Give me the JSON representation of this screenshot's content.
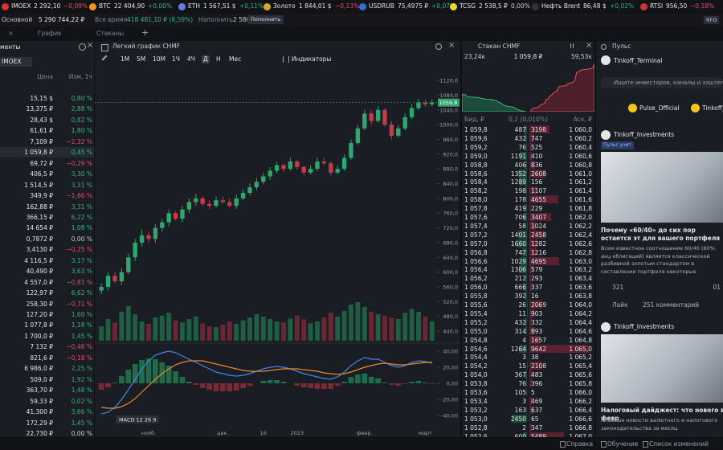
{
  "ticker": [
    {
      "name": "IMOEX",
      "value": "2 292,10",
      "change": "−0,09%"
    },
    {
      "name": "BTC",
      "value": "22 404,90",
      "change": "+0,00%"
    },
    {
      "name": "ETH",
      "value": "1 567,51 $",
      "change": "+0,11%"
    },
    {
      "name": "Золото",
      "value": "1 844,01 $",
      "change": "−0,13%"
    },
    {
      "name": "USDRUB",
      "value": "75,4975 ₽",
      "change": "+0,07%"
    },
    {
      "name": "TCSG",
      "value": "2 538,5 ₽",
      "change": "0,00%"
    },
    {
      "name": "Нефть Brent",
      "value": "86,48 $",
      "change": "+0,02%"
    },
    {
      "name": "RTSI",
      "value": "956,50",
      "change": "−0,18%"
    }
  ],
  "account": {
    "portfolio": "Основной",
    "total": "5 290 744,22 ₽",
    "alltime_label": "Все время",
    "alltime": "418 481,10 ₽ (8,59%)",
    "cash_label": "Наполнить",
    "cash": "2 580,53 ₽",
    "deposit": "Пополнить",
    "badge": "RFO"
  },
  "tabs": [
    "График",
    "Стаканы"
  ],
  "instruments": {
    "title": "менты",
    "index": "IMOEX",
    "columns": [
      "Цена",
      "Изм, 1ч"
    ],
    "rows": [
      [
        "15,15 $",
        "0,80 %"
      ],
      [
        "13,375 ₽",
        "2,88 %"
      ],
      [
        "28,43 $",
        "0,82 %"
      ],
      [
        "61,61 ₽",
        "1,80 %"
      ],
      [
        "7,109 ₽",
        "−2,32 %"
      ],
      [
        "1 059,8 ₽",
        "0,45 %"
      ],
      [
        "69,72 ₽",
        "−0,29 %"
      ],
      [
        "406,5 ₽",
        "3,30 %"
      ],
      [
        "1 514,5 ₽",
        "3,31 %"
      ],
      [
        "349,9 ₽",
        "−1,66 %"
      ],
      [
        "162,88 ₽",
        "3,31 %"
      ],
      [
        "366,15 ₽",
        "6,22 %"
      ],
      [
        "14 654 ₽",
        "1,08 %"
      ],
      [
        "0,7872 ₽",
        "0,00 %"
      ],
      [
        "3,4130 ₽",
        "−0,25 %"
      ],
      [
        "4 116,5 ₽",
        "3,17 %"
      ],
      [
        "40,490 ₽",
        "3,63 %"
      ],
      [
        "4 557,0 ₽",
        "−0,81 %"
      ],
      [
        "122,97 ₽",
        "6,62 %"
      ],
      [
        "258,30 ₽",
        "−0,71 %"
      ],
      [
        "127,20 ₽",
        "1,60 %"
      ],
      [
        "1 077,8 ₽",
        "1,18 %"
      ],
      [
        "1 700,0 ₽",
        "1,45 %"
      ],
      [
        "7 132 ₽",
        "−0,46 %"
      ],
      [
        "821,6 ₽",
        "−0,18 %"
      ],
      [
        "6 986,0 ₽",
        "2,25 %"
      ],
      [
        "509,0 ₽",
        "1,92 %"
      ],
      [
        "363,70 ₽",
        "1,48 %"
      ],
      [
        "59,33 ₽",
        "0,02 %"
      ],
      [
        "41,300 ₽",
        "3,66 %"
      ],
      [
        "172,29 ₽",
        "1,45 %"
      ],
      [
        "22,730 ₽",
        "0,00 %"
      ]
    ]
  },
  "chart_header": {
    "title": "Легкий график CHMF",
    "periods": [
      "1М",
      "5М",
      "10М",
      "1Ч",
      "4Ч",
      "Д",
      "Н",
      "Мес"
    ],
    "indicators": "Индикаторы"
  },
  "chart_data": [
    {
      "type": "candlestick",
      "up_color": "#2fa66f",
      "down_color": "#c63a4c",
      "open": [
        550,
        560,
        590,
        575,
        600,
        640,
        680,
        700,
        690,
        720,
        735,
        760,
        745,
        770,
        790,
        800,
        785,
        780,
        795,
        790,
        780,
        800,
        815,
        830,
        845,
        860,
        875,
        890,
        880,
        900,
        885,
        870,
        880,
        900,
        895,
        870,
        880,
        910,
        950,
        990,
        1030,
        1010,
        1040,
        1000,
        970,
        990,
        1020,
        1045,
        1060,
        1055
      ],
      "high": [
        570,
        600,
        600,
        610,
        650,
        690,
        715,
        710,
        730,
        745,
        770,
        765,
        780,
        800,
        812,
        805,
        795,
        805,
        805,
        800,
        810,
        825,
        840,
        855,
        870,
        885,
        900,
        895,
        910,
        905,
        890,
        890,
        910,
        910,
        900,
        890,
        920,
        960,
        1000,
        1040,
        1040,
        1050,
        1045,
        1010,
        1000,
        1030,
        1055,
        1070,
        1068,
        1068
      ],
      "low": [
        540,
        550,
        570,
        565,
        595,
        630,
        670,
        680,
        680,
        710,
        725,
        740,
        735,
        760,
        780,
        778,
        770,
        775,
        785,
        775,
        772,
        795,
        808,
        822,
        838,
        850,
        868,
        872,
        875,
        878,
        862,
        865,
        875,
        890,
        862,
        865,
        875,
        905,
        945,
        985,
        1000,
        1005,
        995,
        960,
        965,
        985,
        1015,
        1040,
        1048,
        1050
      ],
      "close": [
        560,
        590,
        575,
        600,
        640,
        680,
        700,
        690,
        720,
        735,
        760,
        745,
        770,
        790,
        800,
        785,
        780,
        795,
        790,
        780,
        800,
        815,
        830,
        845,
        860,
        875,
        890,
        880,
        900,
        885,
        870,
        880,
        900,
        895,
        870,
        880,
        910,
        950,
        990,
        1030,
        1010,
        1040,
        1000,
        970,
        990,
        1020,
        1045,
        1060,
        1055,
        1060
      ],
      "ylim": [
        414,
        1155
      ],
      "yticks": [
        {
          "value": 1120,
          "label": "1120,0"
        },
        {
          "value": 1080,
          "label": "1080,0"
        },
        {
          "value": 1040,
          "label": "1040,0"
        },
        {
          "value": 1000,
          "label": "1000,0"
        },
        {
          "value": 960,
          "label": "960,0"
        },
        {
          "value": 920,
          "label": "920,0"
        },
        {
          "value": 880,
          "label": "880,0"
        },
        {
          "value": 840,
          "label": "840,0"
        },
        {
          "value": 800,
          "label": "800,0"
        },
        {
          "value": 760,
          "label": "760,0"
        },
        {
          "value": 720,
          "label": "720,0"
        },
        {
          "value": 680,
          "label": "680,0"
        },
        {
          "value": 640,
          "label": "640,0"
        },
        {
          "value": 600,
          "label": "600,0"
        },
        {
          "value": 560,
          "label": "560,0"
        },
        {
          "value": 520,
          "label": "520,0"
        },
        {
          "value": 480,
          "label": "480,0"
        },
        {
          "value": 440,
          "label": "440,0"
        }
      ],
      "xticks": [
        {
          "value": 7,
          "label": "нояб."
        },
        {
          "value": 18,
          "label": "дек."
        },
        {
          "value": 24,
          "label": "16"
        },
        {
          "value": 29,
          "label": "2023"
        },
        {
          "value": 39,
          "label": "февр."
        },
        {
          "value": 48,
          "label": "март"
        }
      ],
      "last": {
        "value": 1059.8,
        "label": "1059,8"
      }
    },
    {
      "type": "bar",
      "values": [
        30,
        45,
        38,
        60,
        72,
        55,
        40,
        35,
        48,
        52,
        58,
        42,
        38,
        45,
        50,
        36,
        30,
        28,
        33,
        40,
        35,
        42,
        48,
        55,
        50,
        45,
        40,
        38,
        46,
        52,
        44,
        36,
        40,
        48,
        58,
        50,
        62,
        75,
        80,
        70,
        60,
        55,
        52,
        48,
        45,
        58,
        66,
        60,
        50,
        40
      ]
    },
    {
      "type": "line",
      "label": "MACD 12 26 9",
      "ylim": [
        -55,
        47
      ],
      "yticks": [
        {
          "value": 40,
          "label": "40,00"
        },
        {
          "value": 20,
          "label": "20,00"
        },
        {
          "value": 0,
          "label": "0,00"
        },
        {
          "value": -20,
          "label": "-20,00"
        },
        {
          "value": -40,
          "label": "-40,00"
        }
      ],
      "series": [
        {
          "color": "#3f86e8",
          "values": [
            -38,
            -36,
            -30,
            -20,
            -8,
            5,
            18,
            28,
            35,
            38,
            40,
            38,
            34,
            30,
            26,
            22,
            18,
            14,
            12,
            10,
            9,
            10,
            12,
            15,
            18,
            20,
            21,
            20,
            18,
            15,
            12,
            10,
            8,
            6,
            5,
            8,
            14,
            22,
            28,
            32,
            30,
            30,
            26,
            22,
            20,
            22,
            26,
            28,
            27,
            25
          ]
        },
        {
          "color": "#e88a2c",
          "values": [
            -30,
            -31,
            -31,
            -29,
            -25,
            -19,
            -11,
            -3,
            5,
            12,
            18,
            23,
            26,
            28,
            28,
            28,
            26,
            24,
            22,
            20,
            18,
            16,
            15,
            15,
            15,
            16,
            17,
            18,
            18,
            18,
            17,
            16,
            15,
            13,
            12,
            11,
            12,
            14,
            17,
            20,
            22,
            24,
            25,
            24,
            23,
            23,
            24,
            25,
            26,
            26
          ]
        }
      ],
      "histogram": [
        -8,
        -5,
        1,
        9,
        17,
        24,
        29,
        31,
        30,
        26,
        22,
        15,
        8,
        2,
        -2,
        -6,
        -8,
        -10,
        -10,
        -10,
        -9,
        -6,
        -3,
        0,
        3,
        4,
        4,
        2,
        0,
        -3,
        -5,
        -6,
        -7,
        -7,
        -7,
        -3,
        2,
        8,
        11,
        12,
        8,
        6,
        1,
        -2,
        -3,
        -1,
        2,
        3,
        1,
        -1
      ]
    }
  ],
  "orderbook": {
    "title": "Стакан CHMF",
    "bid_total": "23,24к",
    "price": "1 059,8 ₽",
    "ask_total": "59,53к",
    "columns": [
      "Бид, ₽",
      "0,2 (0,010%)",
      "Аск, ₽"
    ],
    "rows": [
      [
        "1 059,8",
        487,
        3198,
        "1 060,0"
      ],
      [
        "1 059,6",
        432,
        747,
        "1 060,2"
      ],
      [
        "1 059,2",
        76,
        525,
        "1 060,4"
      ],
      [
        "1 059,0",
        1191,
        410,
        "1 060,6"
      ],
      [
        "1 058,8",
        406,
        836,
        "1 060,8"
      ],
      [
        "1 058,6",
        1352,
        2608,
        "1 061,0"
      ],
      [
        "1 058,4",
        1289,
        156,
        "1 061,2"
      ],
      [
        "1 058,2",
        198,
        1107,
        "1 061,4"
      ],
      [
        "1 058,0",
        178,
        4655,
        "1 061,6"
      ],
      [
        "1 057,8",
        419,
        229,
        "1 061,8"
      ],
      [
        "1 057,6",
        706,
        3407,
        "1 062,0"
      ],
      [
        "1 057,4",
        58,
        1024,
        "1 062,2"
      ],
      [
        "1 057,2",
        1401,
        2458,
        "1 062,4"
      ],
      [
        "1 057,0",
        1660,
        1282,
        "1 062,6"
      ],
      [
        "1 056,8",
        747,
        1216,
        "1 062,8"
      ],
      [
        "1 056,6",
        1029,
        4695,
        "1 063,0"
      ],
      [
        "1 056,4",
        1306,
        579,
        "1 063,2"
      ],
      [
        "1 056,2",
        212,
        293,
        "1 063,4"
      ],
      [
        "1 056,0",
        666,
        337,
        "1 063,6"
      ],
      [
        "1 055,8",
        392,
        16,
        "1 063,8"
      ],
      [
        "1 055,6",
        26,
        2069,
        "1 064,0"
      ],
      [
        "1 055,4",
        11,
        903,
        "1 064,2"
      ],
      [
        "1 055,2",
        432,
        332,
        "1 064,4"
      ],
      [
        "1 055,0",
        314,
        893,
        "1 064,6"
      ],
      [
        "1 054,8",
        4,
        1657,
        "1 064,8"
      ],
      [
        "1 054,6",
        1264,
        9642,
        "1 065,0"
      ],
      [
        "1 054,4",
        3,
        38,
        "1 065,2"
      ],
      [
        "1 054,2",
        15,
        2108,
        "1 065,4"
      ],
      [
        "1 054,0",
        367,
        483,
        "1 065,6"
      ],
      [
        "1 053,8",
        76,
        396,
        "1 065,8"
      ],
      [
        "1 053,6",
        105,
        5,
        "1 066,0"
      ],
      [
        "1 053,4",
        3,
        469,
        "1 066,2"
      ],
      [
        "1 053,2",
        163,
        637,
        "1 066,4"
      ],
      [
        "1 053,0",
        2450,
        65,
        "1 066,6"
      ],
      [
        "1 052,8",
        2,
        347,
        "1 066,8"
      ],
      [
        "1 052,6",
        600,
        5489,
        "1 067,0"
      ]
    ]
  },
  "pulse": {
    "title": "Пульс",
    "account": "Tinkoff_Terminal",
    "search": "Ищите инвесторов, каналы и хэштеги",
    "chips": [
      "Pulse_Official",
      "Tinkoff_"
    ],
    "posts": [
      {
        "author": "Tinkoff_Investments",
        "tag": "Пульс учит",
        "title": "Почему «60/40» до сих пор остается эт для вашего портфеля",
        "text": "Всем известное соотношение 60/40 (60% акц облигаций) является классической разбивкой золотым стандартом в составлении портфеля некоторые инвесторы могут сомневаться в та",
        "reactions": "321",
        "views": "01",
        "like": "Лайк",
        "comments": "251 комментарий"
      },
      {
        "author": "Tinkoff_Investments",
        "title": "Налоговый дайджест: что нового в февр",
        "text": "Главные новости валютного и налогового законодательства за месяц"
      }
    ]
  },
  "footer": [
    "Справка",
    "Обучение",
    "Список изменений"
  ]
}
